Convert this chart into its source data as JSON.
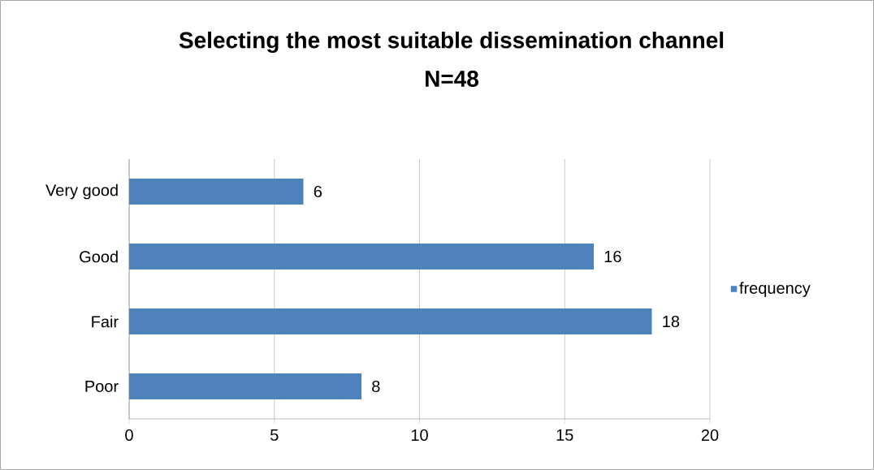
{
  "chart_data": {
    "type": "bar",
    "orientation": "horizontal",
    "title": "Selecting the most suitable dissemination channel",
    "subtitle": "N=48",
    "categories": [
      "Very good",
      "Good",
      "Fair",
      "Poor"
    ],
    "series": [
      {
        "name": "frequency",
        "color": "#4f81bd",
        "values": [
          6,
          16,
          18,
          8
        ]
      }
    ],
    "xlim": [
      0,
      20
    ],
    "xticks": [
      0,
      5,
      10,
      15,
      20
    ],
    "grid": "x",
    "legend": "right",
    "data_labels": true
  }
}
